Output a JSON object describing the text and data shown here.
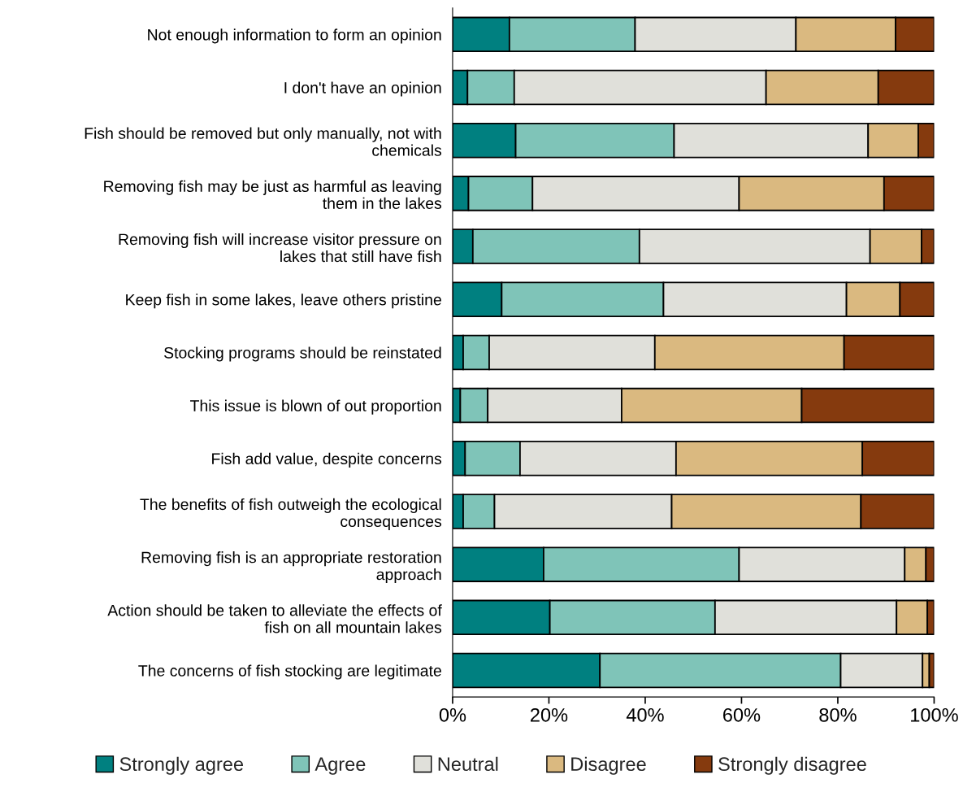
{
  "chart_data": {
    "type": "bar",
    "orientation": "horizontal",
    "stacked": true,
    "legend": "bottom",
    "grid": false,
    "categories": [
      "Not enough information to form an opinion",
      "I don't have an opinion",
      "Fish should be removed but only manually, not with chemicals",
      "Removing fish may be just as harmful as leaving them in the lakes",
      "Removing fish will increase visitor pressure on lakes that still have fish",
      "Keep fish in some lakes, leave others pristine",
      "Stocking programs should be reinstated",
      "This issue is blown of out proportion",
      "Fish add value, despite concerns",
      "The benefits of fish outweigh the ecological consequences",
      "Removing fish is an appropriate restoration approach",
      "Action should be taken to alleviate the effects of fish on all mountain lakes",
      "The concerns of fish stocking are legitimate"
    ],
    "series": [
      {
        "name": "Strongly agree",
        "color": "#008080",
        "values": [
          11.8,
          3.1,
          13.1,
          3.3,
          4.2,
          10.2,
          2.2,
          1.6,
          2.6,
          2.2,
          18.9,
          20.2,
          30.6
        ]
      },
      {
        "name": "Agree",
        "color": "#7fc4b8",
        "values": [
          26.1,
          9.7,
          32.9,
          13.3,
          34.6,
          33.6,
          5.4,
          5.7,
          11.4,
          6.5,
          40.6,
          34.3,
          50.0
        ]
      },
      {
        "name": "Neutral",
        "color": "#e0e0da",
        "values": [
          33.4,
          52.3,
          40.3,
          42.9,
          47.9,
          38.0,
          34.4,
          27.8,
          32.4,
          36.8,
          34.4,
          37.7,
          17.0
        ]
      },
      {
        "name": "Disagree",
        "color": "#dab980",
        "values": [
          20.7,
          23.3,
          10.4,
          30.1,
          10.7,
          11.1,
          39.3,
          37.4,
          38.7,
          39.3,
          4.4,
          6.4,
          1.4
        ]
      },
      {
        "name": "Strongly disagree",
        "color": "#853a0e",
        "values": [
          8.0,
          11.6,
          3.3,
          10.4,
          2.6,
          7.1,
          18.7,
          27.5,
          14.9,
          15.2,
          1.7,
          1.4,
          1.0
        ]
      }
    ],
    "xlim": [
      0,
      100
    ],
    "xticks": [
      {
        "value": 0,
        "label": "0%"
      },
      {
        "value": 20,
        "label": "20%"
      },
      {
        "value": 40,
        "label": "40%"
      },
      {
        "value": 60,
        "label": "60%"
      },
      {
        "value": 80,
        "label": "80%"
      },
      {
        "value": 100,
        "label": "100%"
      }
    ]
  }
}
